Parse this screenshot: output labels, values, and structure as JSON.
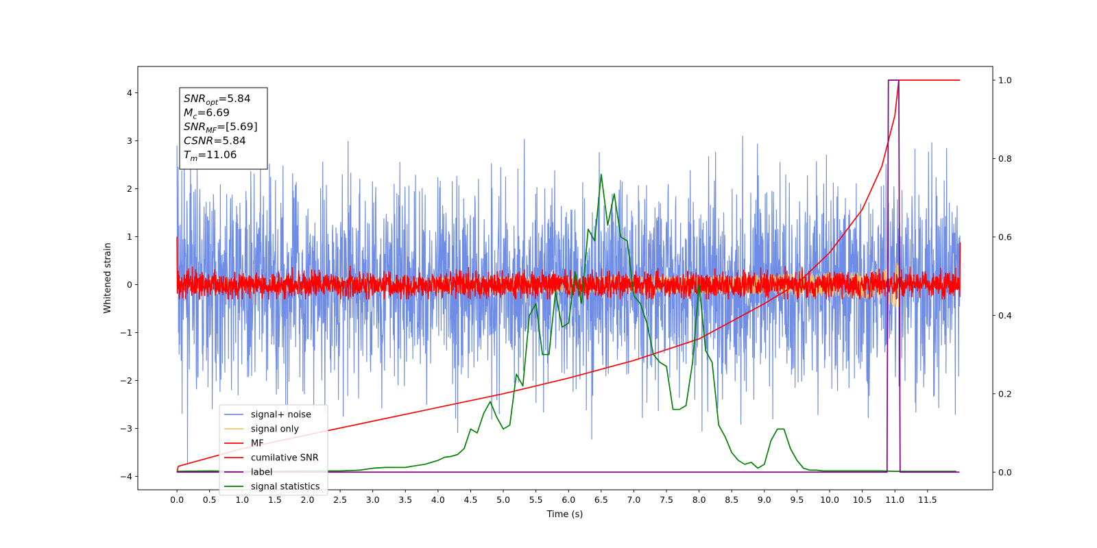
{
  "chart_data": {
    "type": "line",
    "title": "",
    "xlabel": "Time (s)",
    "ylabel": "Whitened strain",
    "xlim": [
      -0.6,
      12.5
    ],
    "ylim": [
      -4.28,
      4.55
    ],
    "y2lim": [
      -0.045,
      1.035
    ],
    "grid": false,
    "legend_position": "bottom-left",
    "x_ticks": [
      "0.0",
      "0.5",
      "1.0",
      "1.5",
      "2.0",
      "2.5",
      "3.0",
      "3.5",
      "4.0",
      "4.5",
      "5.0",
      "5.5",
      "6.0",
      "6.5",
      "7.0",
      "7.5",
      "8.0",
      "8.5",
      "9.0",
      "9.5",
      "10.0",
      "10.5",
      "11.0",
      "11.5"
    ],
    "y_ticks": [
      "4",
      "3",
      "2",
      "1",
      "0",
      "−1",
      "−2",
      "−3",
      "−4"
    ],
    "y2_ticks": [
      "1.0",
      "0.8",
      "0.6",
      "0.4",
      "0.2",
      "0.0"
    ],
    "info_box": [
      {
        "var": "SNR",
        "sub": "opt",
        "rest": "=5.84"
      },
      {
        "var": "M",
        "sub": "c",
        "rest": "=6.69"
      },
      {
        "var": "SNR",
        "sub": "MF",
        "rest": "=[5.69]"
      },
      {
        "var": "CSNR",
        "sub": "",
        "rest": "=5.84"
      },
      {
        "var": "T",
        "sub": "m",
        "rest": "=11.06"
      }
    ],
    "series": [
      {
        "name": "signal+ noise",
        "color": "#6f8de6",
        "axis": "left",
        "kind": "noise",
        "x_range": [
          0,
          12
        ],
        "amplitude_range": [
          -3.75,
          4.18
        ]
      },
      {
        "name": "signal only",
        "color": "#f6c36b",
        "axis": "left",
        "kind": "chirp",
        "x_range": [
          0,
          12
        ],
        "peak_time": 11.06,
        "peak_amplitude": 0.65
      },
      {
        "name": "MF",
        "color": "#ff0000",
        "axis": "left",
        "kind": "noise",
        "x_range": [
          0,
          12
        ],
        "amplitude_range": [
          -0.3,
          1.0
        ]
      },
      {
        "name": "cumilative SNR",
        "color": "#ff0000",
        "axis": "right",
        "x": [
          0.0,
          0.02,
          1.0,
          2.0,
          3.0,
          4.0,
          5.0,
          6.0,
          7.0,
          8.0,
          9.0,
          9.5,
          10.0,
          10.5,
          10.8,
          11.0,
          11.06,
          11.1,
          12.0
        ],
        "values": [
          0.0,
          0.015,
          0.06,
          0.095,
          0.13,
          0.165,
          0.2,
          0.24,
          0.285,
          0.34,
          0.43,
          0.48,
          0.56,
          0.67,
          0.78,
          0.91,
          1.0,
          1.0,
          1.0
        ]
      },
      {
        "name": "label",
        "color": "#800080",
        "axis": "right",
        "x": [
          0.0,
          10.88,
          10.9,
          10.98,
          11.0,
          11.06,
          11.08,
          11.99
        ],
        "values": [
          0,
          0,
          1,
          1,
          1,
          1,
          0,
          0
        ]
      },
      {
        "name": "signal statistics",
        "color": "#008000",
        "axis": "right",
        "x": [
          0.0,
          0.5,
          1.0,
          1.5,
          2.0,
          2.5,
          2.8,
          3.0,
          3.2,
          3.4,
          3.5,
          3.6,
          3.8,
          4.0,
          4.1,
          4.2,
          4.3,
          4.4,
          4.5,
          4.6,
          4.7,
          4.8,
          4.9,
          5.0,
          5.1,
          5.2,
          5.3,
          5.4,
          5.5,
          5.6,
          5.7,
          5.8,
          5.9,
          6.0,
          6.1,
          6.2,
          6.3,
          6.4,
          6.5,
          6.6,
          6.7,
          6.8,
          6.9,
          7.0,
          7.1,
          7.2,
          7.3,
          7.4,
          7.5,
          7.6,
          7.7,
          7.8,
          7.9,
          8.0,
          8.1,
          8.2,
          8.3,
          8.4,
          8.5,
          8.6,
          8.7,
          8.8,
          8.9,
          9.0,
          9.1,
          9.2,
          9.3,
          9.4,
          9.5,
          9.6,
          9.7,
          9.8,
          9.9,
          10.0,
          10.1,
          10.2,
          10.3,
          10.4,
          10.5,
          10.6,
          10.8,
          11.0,
          11.5,
          11.94
        ],
        "values": [
          0.002,
          0.003,
          0.002,
          0.002,
          0.003,
          0.003,
          0.005,
          0.01,
          0.012,
          0.012,
          0.012,
          0.015,
          0.02,
          0.03,
          0.038,
          0.04,
          0.045,
          0.06,
          0.11,
          0.1,
          0.15,
          0.18,
          0.14,
          0.11,
          0.12,
          0.25,
          0.22,
          0.4,
          0.43,
          0.3,
          0.3,
          0.46,
          0.37,
          0.38,
          0.51,
          0.43,
          0.62,
          0.59,
          0.76,
          0.63,
          0.71,
          0.6,
          0.59,
          0.45,
          0.43,
          0.38,
          0.3,
          0.28,
          0.27,
          0.16,
          0.16,
          0.17,
          0.28,
          0.48,
          0.31,
          0.28,
          0.12,
          0.09,
          0.05,
          0.03,
          0.02,
          0.025,
          0.01,
          0.02,
          0.08,
          0.11,
          0.11,
          0.06,
          0.03,
          0.01,
          0.005,
          0.005,
          0.003,
          0.003,
          0.003,
          0.003,
          0.003,
          0.003,
          0.003,
          0.003,
          0.003,
          0.002,
          0.002,
          0.002
        ]
      }
    ]
  }
}
